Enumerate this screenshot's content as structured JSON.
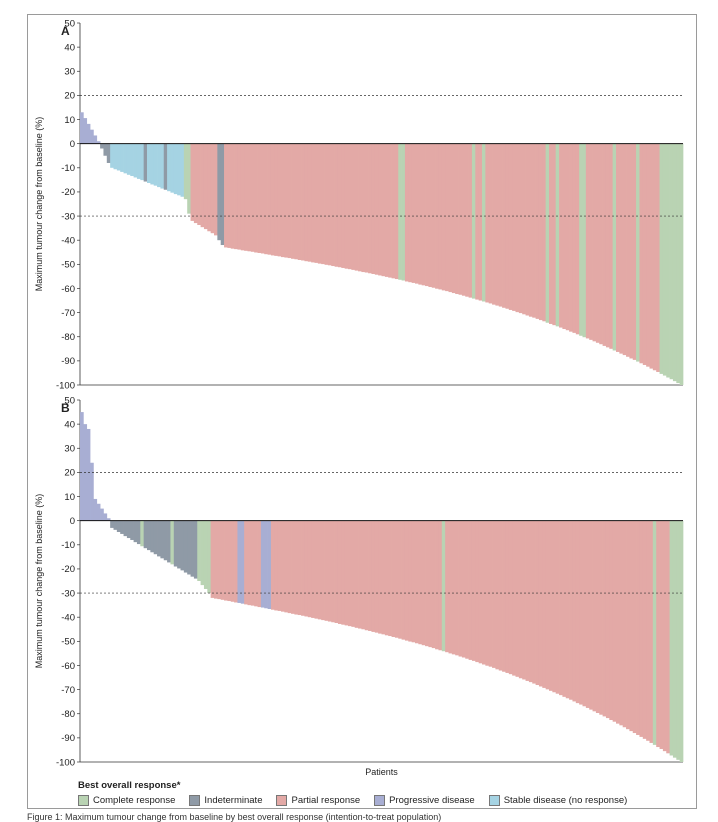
{
  "legend": {
    "title": "Best overall response*",
    "items": [
      {
        "label": "Complete response",
        "color": "#b9d3b3"
      },
      {
        "label": "Indeterminate",
        "color": "#8f9aa6"
      },
      {
        "label": "Partial response",
        "color": "#e3a9a6"
      },
      {
        "label": "Progressive disease",
        "color": "#a8aed3"
      },
      {
        "label": "Stable disease (no response)",
        "color": "#a5d3e3"
      }
    ]
  },
  "x_axis_label": "Patients",
  "caption": "Figure 1: Maximum tumour change from baseline by best overall response (intention-to-treat population)",
  "chart_data": [
    {
      "type": "bar",
      "panel": "A",
      "ylabel": "Maximum tumour change from baseline (%)",
      "xlabel": "",
      "ylim": [
        -100,
        50
      ],
      "yticks": [
        50,
        40,
        30,
        20,
        10,
        0,
        -10,
        -20,
        -30,
        -40,
        -50,
        -60,
        -70,
        -80,
        -90,
        -100
      ],
      "reference_lines": [
        20,
        -30
      ],
      "n_patients": 180,
      "segments": [
        {
          "n": 6,
          "from": 13,
          "to": 1,
          "response": "PD"
        },
        {
          "n": 3,
          "from": -2,
          "to": -8,
          "response": "IND"
        },
        {
          "n": 22,
          "from": -10,
          "to": -22,
          "response": "SD"
        },
        {
          "n": 2,
          "from": -23,
          "to": -29,
          "response": "CR"
        },
        {
          "n": 8,
          "from": -32,
          "to": -38,
          "response": "PR"
        },
        {
          "n": 2,
          "from": -40,
          "to": -42,
          "response": "IND"
        },
        {
          "n": 137,
          "from": -43,
          "to": -100,
          "response": "PR"
        }
      ],
      "overrides": [
        {
          "index": 19,
          "response": "IND"
        },
        {
          "index": 25,
          "response": "IND"
        },
        {
          "index": 95,
          "response": "CR"
        },
        {
          "index": 96,
          "response": "CR"
        },
        {
          "index": 117,
          "response": "CR"
        },
        {
          "index": 120,
          "response": "CR"
        },
        {
          "index": 139,
          "response": "CR"
        },
        {
          "index": 142,
          "response": "CR"
        },
        {
          "index": 149,
          "response": "CR"
        },
        {
          "index": 150,
          "response": "CR"
        },
        {
          "index": 152,
          "response": "PR"
        },
        {
          "index": 159,
          "response": "CR"
        },
        {
          "index": 166,
          "response": "CR"
        },
        {
          "index": 173,
          "response": "CR"
        },
        {
          "index": 174,
          "response": "CR"
        },
        {
          "index": 175,
          "response": "CR"
        },
        {
          "index": 176,
          "response": "CR"
        },
        {
          "index": 177,
          "response": "CR"
        },
        {
          "index": 178,
          "response": "CR"
        },
        {
          "index": 179,
          "response": "CR"
        }
      ]
    },
    {
      "type": "bar",
      "panel": "B",
      "ylabel": "Maximum tumour change from baseline (%)",
      "xlabel": "Patients",
      "ylim": [
        -100,
        50
      ],
      "yticks": [
        50,
        40,
        30,
        20,
        10,
        0,
        -10,
        -20,
        -30,
        -40,
        -50,
        -60,
        -70,
        -80,
        -90,
        -100
      ],
      "reference_lines": [
        20,
        -30
      ],
      "n_patients": 180,
      "segments": [
        {
          "n": 2,
          "from": 45,
          "to": 40,
          "response": "PD"
        },
        {
          "n": 2,
          "from": 38,
          "to": 24,
          "response": "PD"
        },
        {
          "n": 5,
          "from": 9,
          "to": 1,
          "response": "PD"
        },
        {
          "n": 26,
          "from": -3,
          "to": -24,
          "response": "IND"
        },
        {
          "n": 4,
          "from": -25,
          "to": -30,
          "response": "CR"
        },
        {
          "n": 141,
          "from": -32,
          "to": -100,
          "response": "PR"
        }
      ],
      "overrides": [
        {
          "index": 18,
          "response": "CR"
        },
        {
          "index": 27,
          "response": "CR"
        },
        {
          "index": 47,
          "response": "PD"
        },
        {
          "index": 48,
          "response": "PD"
        },
        {
          "index": 54,
          "response": "PD"
        },
        {
          "index": 55,
          "response": "PD"
        },
        {
          "index": 56,
          "response": "PD"
        },
        {
          "index": 108,
          "response": "CR"
        },
        {
          "index": 171,
          "response": "CR"
        },
        {
          "index": 176,
          "response": "CR"
        },
        {
          "index": 177,
          "response": "CR"
        },
        {
          "index": 178,
          "response": "CR"
        },
        {
          "index": 179,
          "response": "CR"
        }
      ]
    }
  ],
  "response_colors": {
    "CR": "#b9d3b3",
    "IND": "#8f9aa6",
    "PR": "#e3a9a6",
    "PD": "#a8aed3",
    "SD": "#a5d3e3"
  }
}
